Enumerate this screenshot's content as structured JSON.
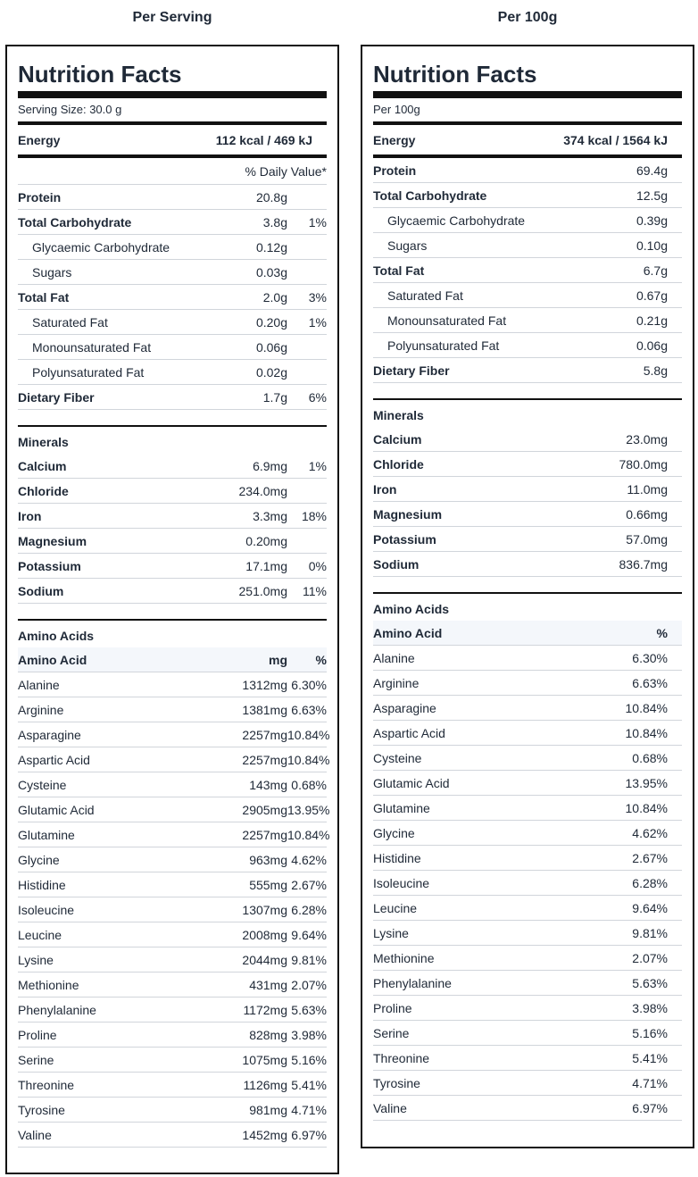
{
  "columns": {
    "left_heading": "Per Serving",
    "right_heading": "Per 100g"
  },
  "left": {
    "title": "Nutrition Facts",
    "serving": "Serving Size: 30.0 g",
    "energy": {
      "label": "Energy",
      "value": "112 kcal / 469 kJ"
    },
    "dv_header": "% Daily Value*",
    "nutrients": [
      {
        "name": "Protein",
        "value": "20.8g",
        "pct": "",
        "bold": true
      },
      {
        "name": "Total Carbohydrate",
        "value": "3.8g",
        "pct": "1%",
        "bold": true
      },
      {
        "name": "Glycaemic Carbohydrate",
        "value": "0.12g",
        "pct": "",
        "indent": true
      },
      {
        "name": "Sugars",
        "value": "0.03g",
        "pct": "",
        "indent": true
      },
      {
        "name": "Total Fat",
        "value": "2.0g",
        "pct": "3%",
        "bold": true
      },
      {
        "name": "Saturated Fat",
        "value": "0.20g",
        "pct": "1%",
        "indent": true
      },
      {
        "name": "Monounsaturated Fat",
        "value": "0.06g",
        "pct": "",
        "indent": true
      },
      {
        "name": "Polyunsaturated Fat",
        "value": "0.02g",
        "pct": "",
        "indent": true
      },
      {
        "name": "Dietary Fiber",
        "value": "1.7g",
        "pct": "6%",
        "bold": true
      }
    ],
    "minerals_title": "Minerals",
    "minerals": [
      {
        "name": "Calcium",
        "value": "6.9mg",
        "pct": "1%"
      },
      {
        "name": "Chloride",
        "value": "234.0mg",
        "pct": ""
      },
      {
        "name": "Iron",
        "value": "3.3mg",
        "pct": "18%"
      },
      {
        "name": "Magnesium",
        "value": "0.20mg",
        "pct": ""
      },
      {
        "name": "Potassium",
        "value": "17.1mg",
        "pct": "0%"
      },
      {
        "name": "Sodium",
        "value": "251.0mg",
        "pct": "11%"
      }
    ],
    "amino_title": "Amino Acids",
    "amino_header": {
      "name": "Amino Acid",
      "mg": "mg",
      "pct": "%"
    },
    "amino": [
      {
        "name": "Alanine",
        "mg": "1312mg",
        "pct": "6.30%"
      },
      {
        "name": "Arginine",
        "mg": "1381mg",
        "pct": "6.63%"
      },
      {
        "name": "Asparagine",
        "mg": "2257mg",
        "pct": "10.84%"
      },
      {
        "name": "Aspartic Acid",
        "mg": "2257mg",
        "pct": "10.84%"
      },
      {
        "name": "Cysteine",
        "mg": "143mg",
        "pct": "0.68%"
      },
      {
        "name": "Glutamic Acid",
        "mg": "2905mg",
        "pct": "13.95%"
      },
      {
        "name": "Glutamine",
        "mg": "2257mg",
        "pct": "10.84%"
      },
      {
        "name": "Glycine",
        "mg": "963mg",
        "pct": "4.62%"
      },
      {
        "name": "Histidine",
        "mg": "555mg",
        "pct": "2.67%"
      },
      {
        "name": "Isoleucine",
        "mg": "1307mg",
        "pct": "6.28%"
      },
      {
        "name": "Leucine",
        "mg": "2008mg",
        "pct": "9.64%"
      },
      {
        "name": "Lysine",
        "mg": "2044mg",
        "pct": "9.81%"
      },
      {
        "name": "Methionine",
        "mg": "431mg",
        "pct": "2.07%"
      },
      {
        "name": "Phenylalanine",
        "mg": "1172mg",
        "pct": "5.63%"
      },
      {
        "name": "Proline",
        "mg": "828mg",
        "pct": "3.98%"
      },
      {
        "name": "Serine",
        "mg": "1075mg",
        "pct": "5.16%"
      },
      {
        "name": "Threonine",
        "mg": "1126mg",
        "pct": "5.41%"
      },
      {
        "name": "Tyrosine",
        "mg": "981mg",
        "pct": "4.71%"
      },
      {
        "name": "Valine",
        "mg": "1452mg",
        "pct": "6.97%"
      }
    ]
  },
  "right": {
    "title": "Nutrition Facts",
    "serving": "Per 100g",
    "energy": {
      "label": "Energy",
      "value": "374 kcal / 1564 kJ"
    },
    "nutrients": [
      {
        "name": "Protein",
        "value": "69.4g",
        "bold": true
      },
      {
        "name": "Total Carbohydrate",
        "value": "12.5g",
        "bold": true
      },
      {
        "name": "Glycaemic Carbohydrate",
        "value": "0.39g",
        "indent": true
      },
      {
        "name": "Sugars",
        "value": "0.10g",
        "indent": true
      },
      {
        "name": "Total Fat",
        "value": "6.7g",
        "bold": true
      },
      {
        "name": "Saturated Fat",
        "value": "0.67g",
        "indent": true
      },
      {
        "name": "Monounsaturated Fat",
        "value": "0.21g",
        "indent": true
      },
      {
        "name": "Polyunsaturated Fat",
        "value": "0.06g",
        "indent": true
      },
      {
        "name": "Dietary Fiber",
        "value": "5.8g",
        "bold": true
      }
    ],
    "minerals_title": "Minerals",
    "minerals": [
      {
        "name": "Calcium",
        "value": "23.0mg"
      },
      {
        "name": "Chloride",
        "value": "780.0mg"
      },
      {
        "name": "Iron",
        "value": "11.0mg"
      },
      {
        "name": "Magnesium",
        "value": "0.66mg"
      },
      {
        "name": "Potassium",
        "value": "57.0mg"
      },
      {
        "name": "Sodium",
        "value": "836.7mg"
      }
    ],
    "amino_title": "Amino Acids",
    "amino_header": {
      "name": "Amino Acid",
      "pct": "%"
    },
    "amino": [
      {
        "name": "Alanine",
        "pct": "6.30%"
      },
      {
        "name": "Arginine",
        "pct": "6.63%"
      },
      {
        "name": "Asparagine",
        "pct": "10.84%"
      },
      {
        "name": "Aspartic Acid",
        "pct": "10.84%"
      },
      {
        "name": "Cysteine",
        "pct": "0.68%"
      },
      {
        "name": "Glutamic Acid",
        "pct": "13.95%"
      },
      {
        "name": "Glutamine",
        "pct": "10.84%"
      },
      {
        "name": "Glycine",
        "pct": "4.62%"
      },
      {
        "name": "Histidine",
        "pct": "2.67%"
      },
      {
        "name": "Isoleucine",
        "pct": "6.28%"
      },
      {
        "name": "Leucine",
        "pct": "9.64%"
      },
      {
        "name": "Lysine",
        "pct": "9.81%"
      },
      {
        "name": "Methionine",
        "pct": "2.07%"
      },
      {
        "name": "Phenylalanine",
        "pct": "5.63%"
      },
      {
        "name": "Proline",
        "pct": "3.98%"
      },
      {
        "name": "Serine",
        "pct": "5.16%"
      },
      {
        "name": "Threonine",
        "pct": "5.41%"
      },
      {
        "name": "Tyrosine",
        "pct": "4.71%"
      },
      {
        "name": "Valine",
        "pct": "6.97%"
      }
    ]
  }
}
